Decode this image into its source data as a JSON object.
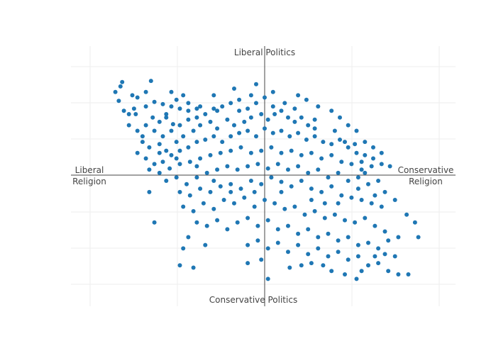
{
  "colors": {
    "point": "#1f77b4",
    "grid": "#eeeeee",
    "axis": "#444444",
    "text": "#444444"
  },
  "chart_data": {
    "type": "scatter",
    "title": "",
    "grid": true,
    "xlim": [
      -1.1,
      1.1
    ],
    "ylim": [
      -1.1,
      1.1
    ],
    "quadrant_labels": {
      "top": "Liberal Politics",
      "bottom": "Conservative Politics",
      "left_line1": "Liberal",
      "left_line2": "Religion",
      "right_line1": "Conservative",
      "right_line2": "Religion"
    },
    "points": [
      [
        -0.84,
        0.84
      ],
      [
        -0.67,
        0.85
      ],
      [
        -0.86,
        0.67
      ],
      [
        -0.78,
        0.72
      ],
      [
        -0.7,
        0.75
      ],
      [
        -0.83,
        0.58
      ],
      [
        -0.77,
        0.6
      ],
      [
        -0.7,
        0.62
      ],
      [
        -0.76,
        0.55
      ],
      [
        -0.65,
        0.66
      ],
      [
        -0.6,
        0.64
      ],
      [
        -0.55,
        0.62
      ],
      [
        -0.5,
        0.6
      ],
      [
        -0.45,
        0.65
      ],
      [
        -0.4,
        0.6
      ],
      [
        -0.66,
        0.52
      ],
      [
        -0.62,
        0.48
      ],
      [
        -0.58,
        0.52
      ],
      [
        -0.54,
        0.46
      ],
      [
        -0.7,
        0.45
      ],
      [
        -0.75,
        0.4
      ],
      [
        -0.8,
        0.45
      ],
      [
        -0.65,
        0.4
      ],
      [
        -0.6,
        0.35
      ],
      [
        -0.55,
        0.4
      ],
      [
        -0.5,
        0.45
      ],
      [
        -0.45,
        0.5
      ],
      [
        -0.4,
        0.52
      ],
      [
        -0.35,
        0.55
      ],
      [
        -0.3,
        0.6
      ],
      [
        -0.25,
        0.62
      ],
      [
        -0.2,
        0.65
      ],
      [
        -0.15,
        0.68
      ],
      [
        -0.1,
        0.6
      ],
      [
        -0.05,
        0.65
      ],
      [
        0.0,
        0.7
      ],
      [
        0.05,
        0.62
      ],
      [
        -0.72,
        0.3
      ],
      [
        -0.68,
        0.25
      ],
      [
        -0.62,
        0.28
      ],
      [
        -0.58,
        0.22
      ],
      [
        -0.52,
        0.3
      ],
      [
        -0.48,
        0.35
      ],
      [
        -0.42,
        0.4
      ],
      [
        -0.38,
        0.45
      ],
      [
        -0.32,
        0.48
      ],
      [
        -0.28,
        0.42
      ],
      [
        -0.22,
        0.5
      ],
      [
        -0.18,
        0.45
      ],
      [
        -0.12,
        0.48
      ],
      [
        -0.08,
        0.52
      ],
      [
        -0.02,
        0.55
      ],
      [
        0.02,
        0.5
      ],
      [
        0.06,
        0.55
      ],
      [
        0.1,
        0.58
      ],
      [
        0.14,
        0.52
      ],
      [
        0.18,
        0.48
      ],
      [
        0.22,
        0.52
      ],
      [
        0.26,
        0.45
      ],
      [
        0.3,
        0.5
      ],
      [
        -0.75,
        0.2
      ],
      [
        -0.7,
        0.15
      ],
      [
        -0.65,
        0.1
      ],
      [
        -0.6,
        0.12
      ],
      [
        -0.55,
        0.18
      ],
      [
        -0.5,
        0.22
      ],
      [
        -0.45,
        0.25
      ],
      [
        -0.4,
        0.3
      ],
      [
        -0.35,
        0.32
      ],
      [
        -0.3,
        0.35
      ],
      [
        -0.25,
        0.3
      ],
      [
        -0.2,
        0.35
      ],
      [
        -0.15,
        0.38
      ],
      [
        -0.1,
        0.4
      ],
      [
        -0.05,
        0.35
      ],
      [
        0.0,
        0.42
      ],
      [
        0.05,
        0.38
      ],
      [
        0.1,
        0.4
      ],
      [
        0.15,
        0.35
      ],
      [
        0.2,
        0.38
      ],
      [
        0.25,
        0.32
      ],
      [
        0.3,
        0.35
      ],
      [
        0.35,
        0.3
      ],
      [
        0.4,
        0.28
      ],
      [
        0.45,
        0.32
      ],
      [
        0.5,
        0.25
      ],
      [
        0.55,
        0.2
      ],
      [
        0.6,
        0.18
      ],
      [
        0.65,
        0.15
      ],
      [
        0.7,
        0.1
      ],
      [
        -0.68,
        0.05
      ],
      [
        -0.62,
        0.02
      ],
      [
        -0.56,
        0.06
      ],
      [
        -0.5,
        0.1
      ],
      [
        -0.44,
        0.12
      ],
      [
        -0.38,
        0.15
      ],
      [
        -0.32,
        0.18
      ],
      [
        -0.26,
        0.2
      ],
      [
        -0.2,
        0.22
      ],
      [
        -0.14,
        0.25
      ],
      [
        -0.08,
        0.2
      ],
      [
        -0.02,
        0.22
      ],
      [
        0.04,
        0.25
      ],
      [
        0.1,
        0.2
      ],
      [
        0.16,
        0.22
      ],
      [
        0.22,
        0.18
      ],
      [
        0.28,
        0.2
      ],
      [
        0.34,
        0.15
      ],
      [
        0.4,
        0.18
      ],
      [
        0.46,
        0.12
      ],
      [
        0.52,
        0.1
      ],
      [
        0.58,
        0.05
      ],
      [
        0.64,
        0.08
      ],
      [
        -0.58,
        -0.05
      ],
      [
        -0.52,
        -0.02
      ],
      [
        -0.46,
        -0.08
      ],
      [
        -0.4,
        -0.02
      ],
      [
        -0.34,
        0.02
      ],
      [
        -0.28,
        0.05
      ],
      [
        -0.22,
        0.08
      ],
      [
        -0.16,
        0.05
      ],
      [
        -0.1,
        0.08
      ],
      [
        -0.04,
        0.1
      ],
      [
        0.02,
        0.06
      ],
      [
        0.08,
        0.1
      ],
      [
        0.14,
        0.05
      ],
      [
        0.2,
        0.08
      ],
      [
        0.26,
        0.02
      ],
      [
        0.32,
        0.05
      ],
      [
        0.38,
        -0.02
      ],
      [
        0.44,
        0.02
      ],
      [
        0.5,
        -0.05
      ],
      [
        0.56,
        -0.02
      ],
      [
        0.62,
        -0.08
      ],
      [
        -0.5,
        -0.15
      ],
      [
        -0.44,
        -0.18
      ],
      [
        -0.38,
        -0.12
      ],
      [
        -0.32,
        -0.15
      ],
      [
        -0.26,
        -0.1
      ],
      [
        -0.2,
        -0.08
      ],
      [
        -0.14,
        -0.12
      ],
      [
        -0.08,
        -0.05
      ],
      [
        -0.02,
        -0.08
      ],
      [
        0.04,
        -0.02
      ],
      [
        0.1,
        -0.06
      ],
      [
        0.16,
        -0.1
      ],
      [
        0.22,
        -0.05
      ],
      [
        0.28,
        -0.12
      ],
      [
        0.34,
        -0.15
      ],
      [
        0.4,
        -0.1
      ],
      [
        0.46,
        -0.18
      ],
      [
        0.52,
        -0.2
      ],
      [
        0.58,
        -0.22
      ],
      [
        0.64,
        -0.25
      ],
      [
        0.7,
        -0.28
      ],
      [
        -0.48,
        -0.28
      ],
      [
        -0.42,
        -0.32
      ],
      [
        -0.36,
        -0.25
      ],
      [
        -0.3,
        -0.3
      ],
      [
        -0.24,
        -0.22
      ],
      [
        -0.18,
        -0.25
      ],
      [
        -0.12,
        -0.2
      ],
      [
        -0.06,
        -0.28
      ],
      [
        0.0,
        -0.22
      ],
      [
        0.06,
        -0.25
      ],
      [
        0.12,
        -0.3
      ],
      [
        0.18,
        -0.28
      ],
      [
        0.24,
        -0.35
      ],
      [
        0.3,
        -0.32
      ],
      [
        0.36,
        -0.38
      ],
      [
        0.42,
        -0.35
      ],
      [
        0.48,
        -0.4
      ],
      [
        0.54,
        -0.42
      ],
      [
        0.6,
        -0.38
      ],
      [
        0.66,
        -0.45
      ],
      [
        0.72,
        -0.5
      ],
      [
        -0.4,
        -0.42
      ],
      [
        -0.34,
        -0.45
      ],
      [
        -0.28,
        -0.4
      ],
      [
        -0.22,
        -0.48
      ],
      [
        -0.16,
        -0.42
      ],
      [
        -0.1,
        -0.38
      ],
      [
        -0.04,
        -0.45
      ],
      [
        0.02,
        -0.4
      ],
      [
        0.08,
        -0.48
      ],
      [
        0.14,
        -0.45
      ],
      [
        0.2,
        -0.52
      ],
      [
        0.26,
        -0.48
      ],
      [
        0.32,
        -0.55
      ],
      [
        0.38,
        -0.52
      ],
      [
        0.44,
        -0.58
      ],
      [
        0.5,
        -0.55
      ],
      [
        0.56,
        -0.62
      ],
      [
        0.62,
        -0.6
      ],
      [
        0.68,
        -0.65
      ],
      [
        0.74,
        -0.58
      ],
      [
        0.8,
        -0.55
      ],
      [
        -0.1,
        -0.62
      ],
      [
        -0.04,
        -0.58
      ],
      [
        0.02,
        -0.65
      ],
      [
        0.08,
        -0.6
      ],
      [
        0.14,
        -0.68
      ],
      [
        0.2,
        -0.62
      ],
      [
        0.26,
        -0.7
      ],
      [
        0.32,
        -0.65
      ],
      [
        0.38,
        -0.72
      ],
      [
        0.44,
        -0.68
      ],
      [
        0.5,
        -0.75
      ],
      [
        0.56,
        -0.72
      ],
      [
        0.62,
        -0.8
      ],
      [
        0.68,
        -0.78
      ],
      [
        0.74,
        -0.85
      ],
      [
        0.8,
        -0.88
      ],
      [
        0.86,
        -0.88
      ],
      [
        0.55,
        -0.92
      ],
      [
        -0.1,
        -0.78
      ],
      [
        -0.02,
        -0.75
      ],
      [
        0.02,
        -0.92
      ],
      [
        -0.45,
        -0.55
      ],
      [
        -0.48,
        -0.65
      ],
      [
        -0.35,
        -0.62
      ],
      [
        -0.5,
        -0.8
      ],
      [
        -0.42,
        -0.82
      ],
      [
        -0.65,
        -0.42
      ],
      [
        -0.68,
        -0.15
      ],
      [
        -0.75,
        0.7
      ],
      [
        -0.85,
        0.8
      ],
      [
        -0.55,
        0.75
      ],
      [
        -0.48,
        0.72
      ],
      [
        -0.3,
        0.72
      ],
      [
        -0.18,
        0.78
      ],
      [
        -0.05,
        0.82
      ],
      [
        0.05,
        0.75
      ],
      [
        0.2,
        0.72
      ],
      [
        0.25,
        0.68
      ],
      [
        0.32,
        0.62
      ],
      [
        0.4,
        0.58
      ],
      [
        0.45,
        0.52
      ],
      [
        0.5,
        0.45
      ],
      [
        0.55,
        0.4
      ],
      [
        0.6,
        0.3
      ],
      [
        0.65,
        0.25
      ],
      [
        0.7,
        0.2
      ],
      [
        0.75,
        0.08
      ],
      [
        0.6,
        0.02
      ],
      [
        0.72,
        -0.15
      ],
      [
        0.78,
        -0.22
      ],
      [
        0.85,
        -0.35
      ],
      [
        0.9,
        -0.42
      ],
      [
        0.92,
        -0.55
      ],
      [
        0.78,
        -0.72
      ],
      [
        0.72,
        -0.7
      ],
      [
        0.66,
        -0.72
      ],
      [
        0.58,
        -0.85
      ],
      [
        0.48,
        -0.88
      ],
      [
        0.4,
        -0.85
      ],
      [
        0.35,
        -0.8
      ],
      [
        0.28,
        -0.78
      ],
      [
        0.22,
        -0.8
      ],
      [
        0.15,
        -0.82
      ],
      [
        -0.58,
        0.55
      ],
      [
        -0.52,
        0.68
      ],
      [
        -0.45,
        0.58
      ],
      [
        -0.38,
        0.62
      ],
      [
        -0.28,
        0.58
      ],
      [
        -0.15,
        0.58
      ],
      [
        -0.08,
        0.72
      ],
      [
        0.12,
        0.65
      ],
      [
        0.18,
        0.6
      ],
      [
        0.3,
        0.42
      ],
      [
        0.42,
        0.4
      ],
      [
        0.48,
        0.3
      ],
      [
        0.54,
        0.28
      ],
      [
        0.58,
        0.12
      ],
      [
        0.68,
        -0.05
      ],
      [
        0.66,
        -0.18
      ],
      [
        0.56,
        -0.12
      ],
      [
        0.44,
        -0.25
      ],
      [
        0.36,
        -0.25
      ],
      [
        0.28,
        -0.22
      ],
      [
        0.1,
        -0.15
      ],
      [
        -0.06,
        -0.15
      ],
      [
        -0.2,
        -0.15
      ],
      [
        -0.3,
        -0.05
      ],
      [
        -0.4,
        0.08
      ],
      [
        -0.52,
        0.15
      ],
      [
        -0.62,
        0.2
      ],
      [
        -0.72,
        0.35
      ],
      [
        -0.8,
        0.55
      ],
      [
        -0.88,
        0.75
      ]
    ]
  }
}
